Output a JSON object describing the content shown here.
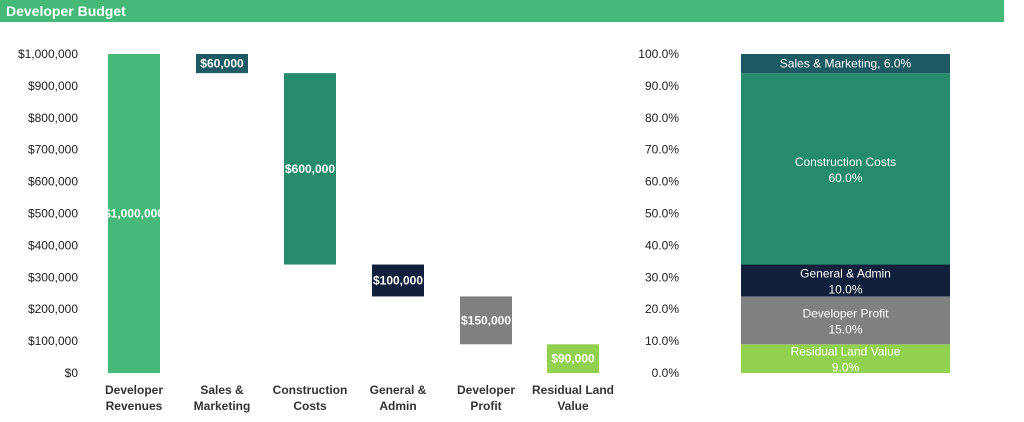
{
  "title": "Developer Budget",
  "colors": {
    "header": "#46b978",
    "revenue": "#46b978",
    "sales": "#1e5a63",
    "construction": "#268a6c",
    "admin": "#11213c",
    "profit": "#808080",
    "land": "#92d050"
  },
  "chart_data": [
    {
      "type": "bar",
      "subtype": "waterfall",
      "categories": [
        "Developer Revenues",
        "Sales & Marketing",
        "Construction Costs",
        "General & Admin",
        "Developer Profit",
        "Residual Land Value"
      ],
      "category_lines": [
        [
          "Developer",
          "Revenues"
        ],
        [
          "Sales &",
          "Marketing"
        ],
        [
          "Construction",
          "Costs"
        ],
        [
          "General &",
          "Admin"
        ],
        [
          "Developer",
          "Profit"
        ],
        [
          "Residual Land",
          "Value"
        ]
      ],
      "values": [
        1000000,
        60000,
        600000,
        100000,
        150000,
        90000
      ],
      "bar_labels": [
        "$1,000,000",
        "$60,000",
        "$600,000",
        "$100,000",
        "$150,000",
        "$90,000"
      ],
      "y_ticks": [
        "$0",
        "$100,000",
        "$200,000",
        "$300,000",
        "$400,000",
        "$500,000",
        "$600,000",
        "$700,000",
        "$800,000",
        "$900,000",
        "$1,000,000"
      ],
      "ylim": [
        0,
        1000000
      ],
      "grid": false
    },
    {
      "type": "bar",
      "subtype": "100% stacked",
      "series": [
        {
          "name": "Residual Land Value",
          "value": 9.0,
          "label": "9.0%"
        },
        {
          "name": "Developer Profit",
          "value": 15.0,
          "label": "15.0%"
        },
        {
          "name": "General & Admin",
          "value": 10.0,
          "label": "10.0%"
        },
        {
          "name": "Construction Costs",
          "value": 60.0,
          "label": "60.0%"
        },
        {
          "name": "Sales & Marketing",
          "value": 6.0,
          "label": "6.0%"
        }
      ],
      "y_ticks": [
        "0.0%",
        "10.0%",
        "20.0%",
        "30.0%",
        "40.0%",
        "50.0%",
        "60.0%",
        "70.0%",
        "80.0%",
        "90.0%",
        "100.0%"
      ],
      "ylim": [
        0,
        100
      ],
      "grid": false
    }
  ]
}
